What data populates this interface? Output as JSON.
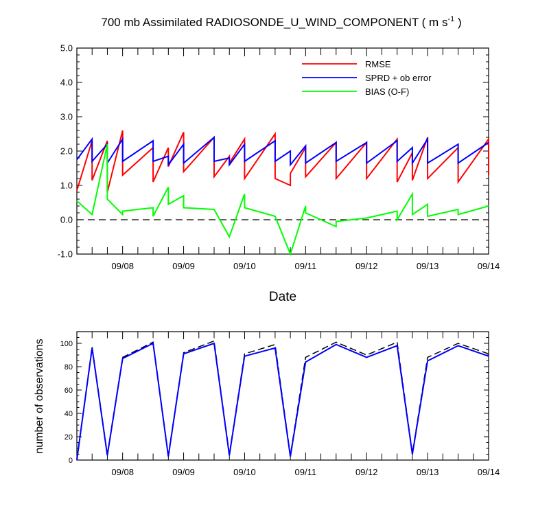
{
  "chart_data": [
    {
      "type": "line",
      "title": "700 mb Assimilated RADIOSONDE_U_WIND_COMPONENT ( m s",
      "title_sup": "-1",
      "title_end": " )",
      "xlabel": "Date",
      "ylabel": "",
      "xlim": [
        7.25,
        14.0
      ],
      "ylim": [
        -1.0,
        5.0
      ],
      "x_ticks": [
        8,
        9,
        10,
        11,
        12,
        13,
        14
      ],
      "x_tick_labels": [
        "09/08",
        "09/09",
        "09/10",
        "09/11",
        "09/12",
        "09/13",
        "09/14"
      ],
      "y_ticks": [
        -1.0,
        0.0,
        1.0,
        2.0,
        3.0,
        4.0,
        5.0
      ],
      "y_tick_labels": [
        "-1.0",
        "0.0",
        "1.0",
        "2.0",
        "3.0",
        "4.0",
        "5.0"
      ],
      "reference_line": {
        "y": 0.0,
        "style": "dashed"
      },
      "legend": {
        "placement": "top-right"
      },
      "series": [
        {
          "name": "RMSE",
          "color": "#ff0000",
          "points": [
            [
              7.25,
              0.85
            ],
            [
              7.5,
              2.3
            ],
            [
              7.5,
              1.15
            ],
            [
              7.75,
              2.3
            ],
            [
              7.75,
              0.8
            ],
            [
              8.0,
              2.6
            ],
            [
              8.0,
              1.3
            ],
            [
              8.5,
              2.1
            ],
            [
              8.5,
              1.1
            ],
            [
              8.75,
              2.1
            ],
            [
              8.75,
              1.55
            ],
            [
              9.0,
              2.55
            ],
            [
              9.0,
              1.4
            ],
            [
              9.5,
              2.4
            ],
            [
              9.5,
              1.25
            ],
            [
              9.75,
              1.85
            ],
            [
              9.75,
              1.65
            ],
            [
              10.0,
              2.35
            ],
            [
              10.0,
              1.2
            ],
            [
              10.5,
              2.5
            ],
            [
              10.5,
              1.2
            ],
            [
              10.75,
              1.0
            ],
            [
              10.75,
              1.35
            ],
            [
              11.0,
              2.1
            ],
            [
              11.0,
              1.25
            ],
            [
              11.5,
              2.25
            ],
            [
              11.5,
              1.2
            ],
            [
              12.0,
              2.25
            ],
            [
              12.0,
              1.2
            ],
            [
              12.5,
              2.35
            ],
            [
              12.5,
              1.1
            ],
            [
              12.75,
              1.95
            ],
            [
              12.75,
              1.15
            ],
            [
              13.0,
              2.4
            ],
            [
              13.0,
              1.2
            ],
            [
              13.5,
              2.1
            ],
            [
              13.5,
              1.1
            ],
            [
              14.0,
              2.35
            ],
            [
              14.0,
              1.3
            ]
          ]
        },
        {
          "name": "SPRD + ob error",
          "color": "#0000ff",
          "points": [
            [
              7.25,
              1.75
            ],
            [
              7.5,
              2.35
            ],
            [
              7.5,
              1.7
            ],
            [
              7.75,
              2.2
            ],
            [
              7.75,
              1.65
            ],
            [
              8.0,
              2.35
            ],
            [
              8.0,
              1.7
            ],
            [
              8.5,
              2.3
            ],
            [
              8.5,
              1.7
            ],
            [
              8.75,
              1.85
            ],
            [
              8.75,
              1.6
            ],
            [
              9.0,
              2.2
            ],
            [
              9.0,
              1.65
            ],
            [
              9.5,
              2.4
            ],
            [
              9.5,
              1.7
            ],
            [
              9.75,
              1.8
            ],
            [
              9.75,
              1.6
            ],
            [
              10.0,
              2.2
            ],
            [
              10.0,
              1.7
            ],
            [
              10.5,
              2.3
            ],
            [
              10.5,
              1.7
            ],
            [
              10.75,
              2.0
            ],
            [
              10.75,
              1.6
            ],
            [
              11.0,
              2.15
            ],
            [
              11.0,
              1.65
            ],
            [
              11.5,
              2.25
            ],
            [
              11.5,
              1.7
            ],
            [
              12.0,
              2.25
            ],
            [
              12.0,
              1.65
            ],
            [
              12.5,
              2.3
            ],
            [
              12.5,
              1.7
            ],
            [
              12.75,
              2.1
            ],
            [
              12.75,
              1.65
            ],
            [
              13.0,
              2.35
            ],
            [
              13.0,
              1.65
            ],
            [
              13.5,
              2.2
            ],
            [
              13.5,
              1.65
            ],
            [
              14.0,
              2.25
            ]
          ]
        },
        {
          "name": "BIAS (O-F)",
          "color": "#00ff00",
          "points": [
            [
              7.25,
              0.55
            ],
            [
              7.5,
              0.15
            ],
            [
              7.75,
              2.2
            ],
            [
              7.75,
              0.6
            ],
            [
              8.0,
              0.15
            ],
            [
              8.0,
              0.25
            ],
            [
              8.5,
              0.35
            ],
            [
              8.5,
              0.1
            ],
            [
              8.75,
              0.95
            ],
            [
              8.75,
              0.45
            ],
            [
              9.0,
              0.7
            ],
            [
              9.0,
              0.35
            ],
            [
              9.5,
              0.3
            ],
            [
              9.75,
              -0.5
            ],
            [
              10.0,
              0.75
            ],
            [
              10.0,
              0.35
            ],
            [
              10.5,
              0.1
            ],
            [
              10.75,
              -1.0
            ],
            [
              11.0,
              0.4
            ],
            [
              11.0,
              0.2
            ],
            [
              11.5,
              -0.2
            ],
            [
              11.5,
              -0.05
            ],
            [
              12.0,
              0.05
            ],
            [
              12.5,
              0.25
            ],
            [
              12.5,
              0.0
            ],
            [
              12.75,
              0.75
            ],
            [
              12.75,
              0.15
            ],
            [
              13.0,
              0.45
            ],
            [
              13.0,
              0.1
            ],
            [
              13.5,
              0.3
            ],
            [
              13.5,
              0.15
            ],
            [
              14.0,
              0.4
            ]
          ]
        }
      ]
    },
    {
      "type": "line",
      "title": "",
      "xlabel": "",
      "ylabel": "number of observations",
      "xlim": [
        7.25,
        14.0
      ],
      "ylim": [
        0,
        110
      ],
      "x_ticks": [
        8,
        9,
        10,
        11,
        12,
        13,
        14
      ],
      "x_tick_labels": [
        "09/08",
        "09/09",
        "09/10",
        "09/11",
        "09/12",
        "09/13",
        "09/14"
      ],
      "y_ticks": [
        0,
        20,
        40,
        60,
        80,
        100
      ],
      "y_tick_labels": [
        "0",
        "20",
        "40",
        "60",
        "80",
        "100"
      ],
      "series": [
        {
          "color": "#000000",
          "dashed": true,
          "points": [
            [
              7.25,
              1
            ],
            [
              7.5,
              97
            ],
            [
              7.75,
              5
            ],
            [
              8.0,
              88
            ],
            [
              8.5,
              101
            ],
            [
              8.75,
              4
            ],
            [
              9.0,
              92
            ],
            [
              9.5,
              102
            ],
            [
              9.75,
              5
            ],
            [
              10.0,
              91
            ],
            [
              10.5,
              99
            ],
            [
              10.75,
              4
            ],
            [
              11.0,
              88
            ],
            [
              11.5,
              101
            ],
            [
              12.0,
              90
            ],
            [
              12.5,
              101
            ],
            [
              12.75,
              6
            ],
            [
              13.0,
              88
            ],
            [
              13.5,
              100
            ],
            [
              14.0,
              91
            ]
          ]
        },
        {
          "color": "#0000ff",
          "points": [
            [
              7.25,
              0
            ],
            [
              7.5,
              96
            ],
            [
              7.75,
              4
            ],
            [
              8.0,
              87
            ],
            [
              8.5,
              100
            ],
            [
              8.75,
              3
            ],
            [
              9.0,
              91
            ],
            [
              9.5,
              100
            ],
            [
              9.75,
              4
            ],
            [
              10.0,
              89
            ],
            [
              10.5,
              96
            ],
            [
              10.75,
              3
            ],
            [
              11.0,
              84
            ],
            [
              11.5,
              99
            ],
            [
              12.0,
              88
            ],
            [
              12.5,
              98
            ],
            [
              12.75,
              5
            ],
            [
              13.0,
              85
            ],
            [
              13.5,
              98
            ],
            [
              14.0,
              89
            ]
          ]
        }
      ]
    }
  ]
}
